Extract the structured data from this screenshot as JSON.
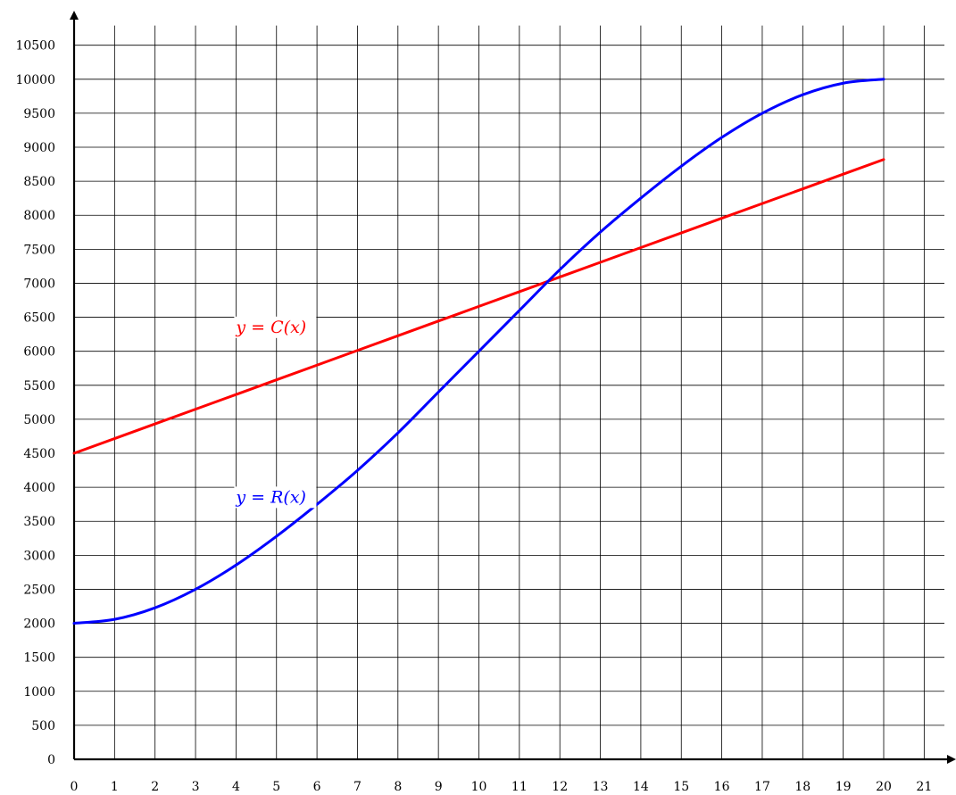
{
  "chart_data": {
    "type": "line",
    "title": "",
    "xlabel": "",
    "ylabel": "",
    "xlim": [
      0,
      21.5
    ],
    "ylim": [
      0,
      10750
    ],
    "grid": true,
    "x_ticks": [
      0,
      1,
      2,
      3,
      4,
      5,
      6,
      7,
      8,
      9,
      10,
      11,
      12,
      13,
      14,
      15,
      16,
      17,
      18,
      19,
      20,
      21
    ],
    "y_ticks": [
      0,
      500,
      1000,
      1500,
      2000,
      2500,
      3000,
      3500,
      4000,
      4500,
      5000,
      5500,
      6000,
      6500,
      7000,
      7500,
      8000,
      8500,
      9000,
      9500,
      10000,
      10500
    ],
    "x": [
      0,
      1,
      2,
      3,
      4,
      5,
      6,
      7,
      8,
      9,
      10,
      11,
      12,
      13,
      14,
      15,
      16,
      17,
      18,
      19,
      20
    ],
    "series": [
      {
        "name": "y = C(x)",
        "color": "#ff0000",
        "values": [
          4500,
          4716,
          4932,
          5148,
          5364,
          5580,
          5796,
          6012,
          6228,
          6444,
          6660,
          6876,
          7092,
          7308,
          7524,
          7740,
          7956,
          8172,
          8388,
          8604,
          8820
        ]
      },
      {
        "name": "y = R(x)",
        "color": "#0000ff",
        "values": [
          2000,
          2058,
          2228,
          2500,
          2856,
          3279,
          3748,
          4248,
          4800,
          5400,
          6000,
          6600,
          7200,
          7752,
          8252,
          8721,
          9144,
          9500,
          9772,
          9942,
          10000
        ]
      }
    ],
    "annotations": [
      {
        "text": "y = C(x)",
        "x": 4,
        "y": 6300,
        "color": "#ff0000"
      },
      {
        "text": "y = R(x)",
        "x": 4,
        "y": 3800,
        "color": "#0000ff"
      }
    ]
  }
}
